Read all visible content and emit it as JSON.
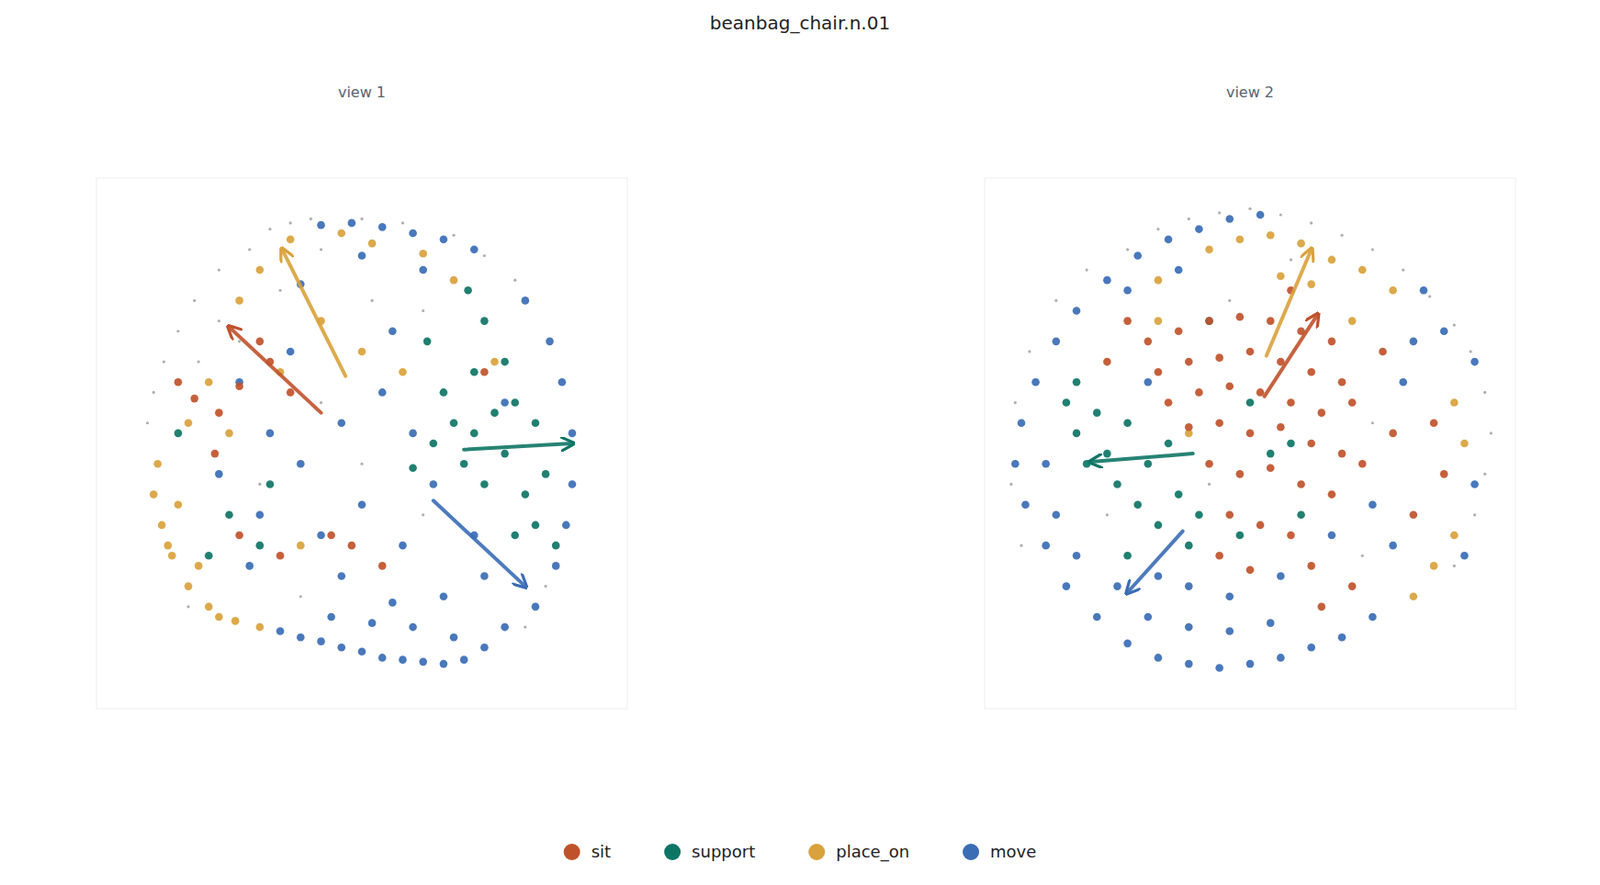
{
  "chart_data": {
    "type": "scatter",
    "title": "beanbag_chair.n.01",
    "tick_labels": false,
    "legend": "bottom",
    "xlim": [
      -1.3,
      1.3
    ],
    "ylim": [
      -1.3,
      1.3
    ],
    "series": [
      {
        "name": "sit",
        "color": "#c0522b"
      },
      {
        "name": "support",
        "color": "#0e7565"
      },
      {
        "name": "place_on",
        "color": "#d9a23c"
      },
      {
        "name": "move",
        "color": "#3a6db5"
      }
    ],
    "panels": [
      {
        "title": "view 1",
        "cloud": {
          "x": [
            -0.45,
            -0.55,
            -0.7,
            -0.82,
            -0.9,
            -0.97,
            -1.02,
            -1.05,
            -0.35,
            -0.25,
            0.0,
            0.2,
            0.45,
            0.6,
            0.75,
            -0.8,
            -0.6,
            -0.7,
            -0.4,
            0.05,
            0.3,
            -0.2,
            0.0,
            -0.5,
            0.3,
            0.9,
            0.8,
            -0.3,
            -0.85,
            -0.2
          ],
          "y": [
            1.05,
            0.95,
            0.85,
            0.7,
            0.55,
            0.4,
            0.25,
            0.1,
            1.08,
            1.1,
            1.1,
            1.08,
            1.02,
            0.92,
            0.8,
            0.4,
            0.5,
            0.6,
            0.75,
            0.7,
            0.65,
            0.2,
            -0.1,
            -0.2,
            -0.35,
            -0.7,
            -0.9,
            -0.75,
            -0.8,
            0.95
          ]
        },
        "series": [
          {
            "x": [
              -0.9,
              -0.82,
              -0.7,
              -0.6,
              -0.45,
              -0.35,
              -0.5,
              -0.72,
              -0.15,
              -0.05,
              0.1,
              -0.4,
              -0.6,
              0.6
            ],
            "y": [
              0.3,
              0.22,
              0.15,
              0.28,
              0.4,
              0.25,
              0.5,
              -0.05,
              -0.45,
              -0.5,
              -0.6,
              -0.55,
              -0.45,
              0.35
            ],
            "arrows": [
              [
                -0.2,
                0.15,
                -0.65,
                0.57
              ]
            ]
          },
          {
            "x": [
              0.35,
              0.45,
              0.55,
              0.65,
              0.75,
              0.85,
              0.5,
              0.6,
              0.7,
              0.8,
              0.9,
              0.4,
              0.55,
              0.7,
              0.85,
              0.75,
              0.6,
              0.52,
              0.32,
              0.25,
              0.95,
              -0.65,
              -0.75,
              -0.9,
              -0.5,
              -0.45
            ],
            "y": [
              0.0,
              0.1,
              0.05,
              0.15,
              0.2,
              0.1,
              -0.1,
              -0.2,
              -0.05,
              -0.25,
              -0.15,
              0.25,
              0.35,
              0.4,
              -0.4,
              -0.45,
              0.6,
              0.75,
              0.5,
              -0.12,
              -0.5,
              -0.35,
              -0.55,
              0.05,
              -0.5,
              -0.2
            ],
            "arrows": [
              [
                0.5,
                -0.03,
                1.03,
                0.0
              ]
            ]
          },
          {
            "x": [
              -1.0,
              -1.02,
              -0.98,
              -0.93,
              -0.85,
              -0.75,
              -0.62,
              -0.5,
              -0.9,
              -0.95,
              -0.8,
              -0.7,
              -0.35,
              -0.1,
              0.05,
              0.3,
              -0.5,
              -0.6,
              -0.2,
              0.0,
              0.2,
              -0.75,
              -0.65,
              -0.4,
              0.45,
              0.65,
              -0.3,
              -0.85
            ],
            "y": [
              -0.1,
              -0.25,
              -0.4,
              -0.55,
              -0.7,
              -0.8,
              -0.87,
              -0.9,
              -0.3,
              -0.5,
              -0.6,
              -0.85,
              1.0,
              1.03,
              0.98,
              0.93,
              0.85,
              0.7,
              0.6,
              0.45,
              0.35,
              0.3,
              0.05,
              0.35,
              0.8,
              0.4,
              -0.5,
              0.1
            ],
            "arrows": [
              [
                -0.08,
                0.33,
                -0.39,
                0.95
              ]
            ]
          },
          {
            "x": [
              -0.4,
              -0.3,
              -0.2,
              -0.1,
              0.0,
              0.1,
              0.2,
              0.3,
              0.4,
              0.5,
              0.6,
              0.7,
              0.05,
              0.25,
              0.45,
              -0.15,
              0.15,
              0.85,
              0.95,
              1.0,
              1.03,
              1.03,
              0.98,
              0.92,
              0.8,
              -0.2,
              -0.05,
              0.1,
              0.25,
              0.4,
              0.55,
              0.0,
              0.3,
              -0.3,
              -0.6,
              -0.45,
              -0.3,
              -0.1,
              0.1,
              0.0,
              -0.2,
              0.2,
              0.35,
              0.55,
              0.6,
              -0.5,
              -0.7,
              -0.35,
              0.15,
              0.25,
              -0.1,
              0.4,
              -0.55,
              0.7
            ],
            "y": [
              -0.92,
              -0.95,
              -0.97,
              -1.0,
              -1.02,
              -1.05,
              -1.06,
              -1.07,
              -1.08,
              -1.06,
              -1.0,
              -0.9,
              -0.88,
              -0.9,
              -0.95,
              -0.85,
              -0.78,
              -0.8,
              -0.6,
              -0.4,
              -0.2,
              0.05,
              0.3,
              0.5,
              0.7,
              1.07,
              1.08,
              1.06,
              1.03,
              1.0,
              0.95,
              0.92,
              0.85,
              0.78,
              0.3,
              0.05,
              -0.1,
              0.1,
              0.25,
              -0.3,
              -0.45,
              -0.5,
              -0.2,
              -0.45,
              -0.65,
              -0.35,
              -0.15,
              0.45,
              0.55,
              0.05,
              -0.65,
              -0.75,
              -0.6,
              0.2
            ],
            "arrows": [
              [
                0.35,
                -0.28,
                0.8,
                -0.7
              ]
            ]
          }
        ]
      },
      {
        "title": "view 2",
        "cloud": {
          "x": [
            -0.6,
            -0.45,
            -0.3,
            -0.15,
            0.0,
            0.15,
            0.3,
            0.45,
            0.6,
            0.75,
            0.88,
            1.0,
            1.08,
            1.15,
            1.18,
            1.15,
            1.1,
            1.0,
            -0.8,
            -0.95,
            -1.08,
            -1.15,
            -1.17,
            -1.12,
            -0.2,
            0.6,
            0.55,
            -0.7,
            0.2,
            -0.1
          ],
          "y": [
            0.95,
            1.05,
            1.1,
            1.13,
            1.15,
            1.12,
            1.08,
            1.02,
            0.95,
            0.85,
            0.72,
            0.58,
            0.45,
            0.25,
            0.05,
            -0.15,
            -0.35,
            -0.6,
            0.85,
            0.7,
            0.45,
            0.2,
            -0.2,
            -0.5,
            -0.2,
            0.1,
            -0.55,
            -0.35,
            0.9,
            0.7
          ]
        },
        "series": [
          {
            "x": [
              -0.5,
              -0.35,
              -0.2,
              -0.05,
              0.1,
              0.25,
              0.4,
              -0.45,
              -0.3,
              -0.15,
              0.0,
              0.15,
              0.3,
              0.45,
              -0.4,
              -0.25,
              -0.1,
              0.05,
              0.2,
              0.35,
              0.5,
              -0.3,
              -0.15,
              0.0,
              0.15,
              0.3,
              0.45,
              -0.2,
              -0.05,
              0.1,
              0.25,
              0.4,
              -0.1,
              0.05,
              0.2,
              0.3,
              -0.15,
              0.0,
              0.55,
              0.7,
              0.9,
              0.95,
              0.8,
              0.65,
              -0.7,
              -0.6,
              0.2,
              0.35,
              0.5
            ],
            "y": [
              0.5,
              0.55,
              0.6,
              0.62,
              0.6,
              0.55,
              0.5,
              0.35,
              0.4,
              0.42,
              0.45,
              0.4,
              0.35,
              0.3,
              0.2,
              0.25,
              0.28,
              0.25,
              0.2,
              0.15,
              0.2,
              0.08,
              0.1,
              0.05,
              0.08,
              0.0,
              -0.05,
              -0.1,
              -0.15,
              -0.12,
              -0.2,
              -0.25,
              -0.35,
              -0.4,
              -0.45,
              -0.6,
              -0.55,
              -0.62,
              -0.1,
              0.05,
              0.1,
              -0.15,
              -0.35,
              0.45,
              0.4,
              0.6,
              0.75,
              -0.8,
              -0.7
            ],
            "arrows": [
              [
                0.07,
                0.23,
                0.33,
                0.63
              ]
            ]
          },
          {
            "x": [
              -0.9,
              -0.85,
              -0.8,
              -0.75,
              -0.7,
              -0.65,
              -0.6,
              -0.55,
              -0.5,
              -0.45,
              -0.4,
              -0.35,
              -0.3,
              -0.25,
              -0.85,
              -0.2,
              0.0,
              0.1,
              0.2,
              0.25,
              -0.05,
              -0.6
            ],
            "y": [
              0.2,
              0.05,
              -0.1,
              0.15,
              -0.05,
              -0.2,
              0.1,
              -0.3,
              -0.1,
              -0.4,
              0.0,
              -0.25,
              -0.5,
              -0.35,
              0.3,
              0.6,
              0.2,
              -0.05,
              0.0,
              -0.35,
              -0.45,
              -0.55
            ],
            "arrows": [
              [
                -0.28,
                -0.05,
                -0.78,
                -0.09
              ]
            ]
          },
          {
            "x": [
              -0.2,
              -0.05,
              0.1,
              0.25,
              0.4,
              0.55,
              0.7,
              0.15,
              0.3,
              0.5,
              1.0,
              1.05,
              1.0,
              0.9,
              0.8,
              -0.45,
              -0.3,
              -0.45
            ],
            "y": [
              0.95,
              1.0,
              1.02,
              0.98,
              0.9,
              0.85,
              0.75,
              0.82,
              0.78,
              0.6,
              0.2,
              0.0,
              -0.45,
              -0.6,
              -0.75,
              0.8,
              0.05,
              0.6
            ],
            "arrows": [
              [
                0.08,
                0.43,
                0.3,
                0.95
              ]
            ]
          },
          {
            "x": [
              -1.15,
              -1.12,
              -1.1,
              -1.05,
              -1.0,
              -0.95,
              -0.9,
              -0.85,
              -0.75,
              -1.0,
              -0.95,
              -0.85,
              -0.6,
              -0.45,
              -0.3,
              -0.15,
              0.0,
              0.15,
              0.3,
              0.45,
              0.6,
              -0.5,
              -0.3,
              -0.1,
              0.1,
              -0.65,
              -0.45,
              -0.7,
              -0.55,
              -0.4,
              -0.25,
              -0.1,
              0.05,
              -0.6,
              -0.35,
              1.1,
              1.1,
              1.05,
              0.95,
              0.85,
              0.75,
              0.7,
              0.6,
              0.8,
              -0.5,
              0.4,
              -0.1,
              0.15,
              -0.3
            ],
            "y": [
              -0.1,
              0.1,
              -0.3,
              0.3,
              -0.5,
              0.5,
              -0.7,
              0.65,
              -0.85,
              -0.1,
              -0.35,
              -0.55,
              -0.98,
              -1.05,
              -1.08,
              -1.1,
              -1.08,
              -1.05,
              -1.0,
              -0.95,
              -0.85,
              -0.85,
              -0.9,
              -0.92,
              -0.88,
              -0.7,
              -0.65,
              0.8,
              0.92,
              1.0,
              1.05,
              1.1,
              1.12,
              0.75,
              0.85,
              0.4,
              -0.2,
              -0.55,
              0.55,
              0.75,
              0.3,
              -0.5,
              -0.3,
              0.5,
              0.3,
              -0.45,
              -0.75,
              -0.65,
              -0.7
            ],
            "arrows": [
              [
                -0.33,
                -0.43,
                -0.6,
                -0.73
              ]
            ]
          }
        ]
      }
    ]
  }
}
